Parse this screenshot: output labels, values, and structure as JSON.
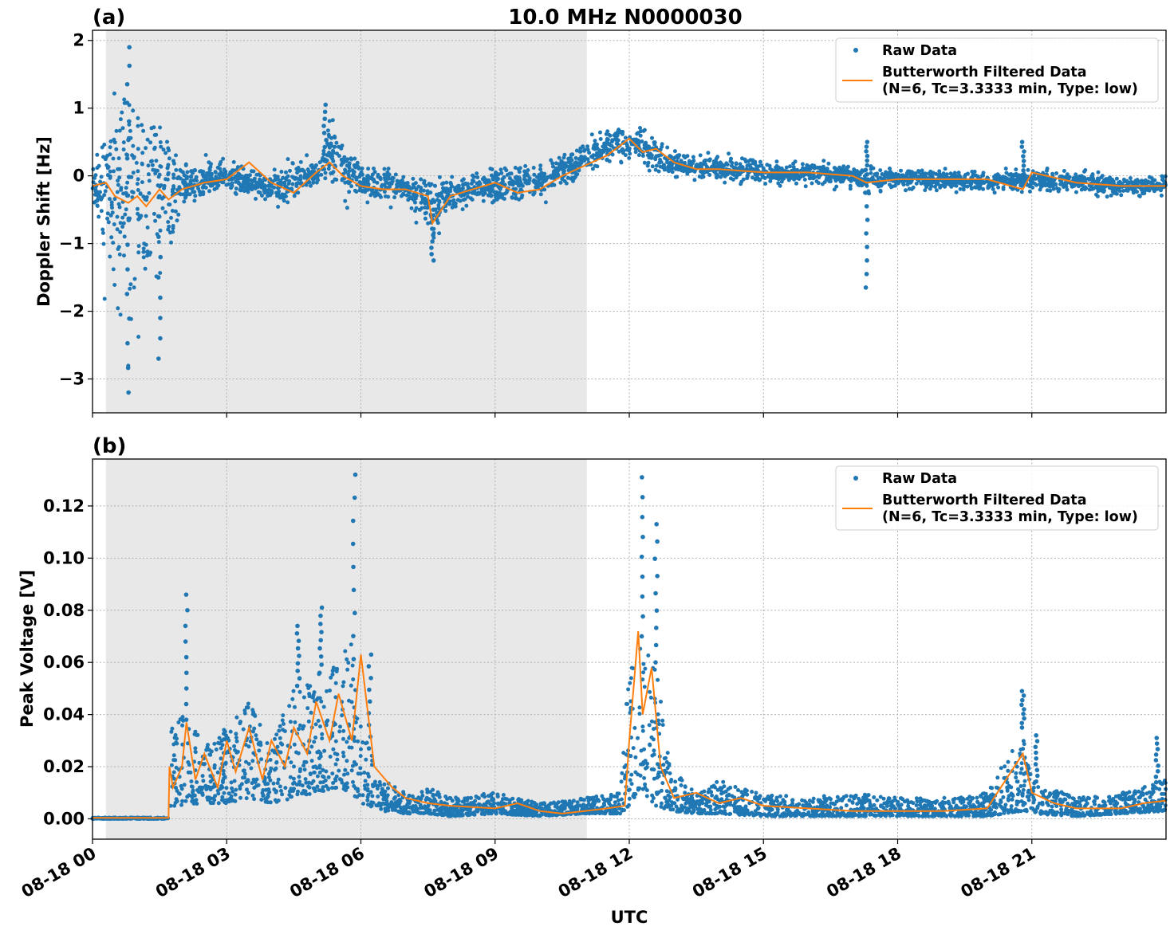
{
  "figure": {
    "title": "10.0 MHz N0000030",
    "xlabel": "UTC",
    "x_tick_labels": [
      "08-18 00",
      "08-18 03",
      "08-18 06",
      "08-18 09",
      "08-18 12",
      "08-18 15",
      "08-18 18",
      "08-18 21"
    ]
  },
  "colors": {
    "raw": "#1f77b4",
    "filtered": "#ff7f0e",
    "night_shade": "#e8e8e8"
  },
  "legend": {
    "raw_label": "Raw Data",
    "filtered_label_line1": "Butterworth Filtered Data",
    "filtered_label_line2": "(N=6, Tc=3.3333 min, Type: low)",
    "placement": "top-right"
  },
  "chart_data": [
    {
      "type": "scatter",
      "panel": "(a)",
      "ylabel": "Doppler Shift [Hz]",
      "xlim_hours_utc": [
        0,
        24
      ],
      "ylim": [
        -3.5,
        2.15
      ],
      "yticks": [
        -3,
        -2,
        -1,
        0,
        1,
        2
      ],
      "y_tick_labels": [
        "−3",
        "−2",
        "−1",
        "0",
        "1",
        "2"
      ],
      "shaded_interval_hours_utc": [
        0.3,
        11.05
      ],
      "grid": true,
      "series": [
        {
          "name": "Raw Data",
          "style": "points",
          "x_hours_utc": [
            0,
            0.5,
            1,
            1.5,
            2,
            3,
            4,
            5,
            5.3,
            6,
            7,
            7.6,
            8,
            9,
            10,
            11,
            11.5,
            12,
            12.5,
            13,
            14,
            15,
            16,
            17,
            17.3,
            18,
            19,
            20,
            21,
            22,
            23,
            24
          ],
          "center": [
            -0.15,
            -0.2,
            -0.35,
            -0.3,
            -0.15,
            0.0,
            -0.2,
            0.05,
            0.3,
            -0.1,
            -0.2,
            -0.5,
            -0.25,
            -0.15,
            -0.1,
            0.25,
            0.45,
            0.5,
            0.35,
            0.15,
            0.1,
            0.05,
            0.05,
            0.0,
            -0.05,
            -0.05,
            -0.05,
            -0.1,
            -0.05,
            -0.1,
            -0.15,
            -0.15
          ],
          "spread": [
            0.15,
            1.8,
            1.6,
            1.5,
            0.3,
            0.25,
            0.25,
            0.25,
            0.5,
            0.25,
            0.25,
            0.5,
            0.25,
            0.25,
            0.25,
            0.25,
            0.25,
            0.25,
            0.25,
            0.2,
            0.15,
            0.15,
            0.15,
            0.15,
            0.2,
            0.15,
            0.15,
            0.15,
            0.15,
            0.15,
            0.15,
            0.15
          ],
          "extremes": [
            [
              0.8,
              -3.2
            ],
            [
              0.8,
              1.9
            ],
            [
              1.5,
              -2.7
            ],
            [
              5.2,
              1.05
            ],
            [
              7.6,
              -1.25
            ],
            [
              17.3,
              -1.65
            ],
            [
              17.3,
              0.5
            ],
            [
              20.8,
              0.5
            ]
          ]
        },
        {
          "name": "Butterworth Filtered Data (N=6, Tc=3.3333 min, Type: low)",
          "style": "line",
          "x_hours_utc": [
            0,
            0.3,
            0.5,
            0.8,
            1.0,
            1.2,
            1.5,
            1.7,
            2.0,
            2.5,
            3.0,
            3.5,
            4.0,
            4.5,
            5.0,
            5.3,
            5.6,
            6.0,
            6.5,
            7.0,
            7.5,
            7.6,
            8.0,
            8.5,
            9.0,
            9.5,
            10.0,
            10.5,
            11.0,
            11.5,
            12.0,
            12.3,
            12.6,
            13.0,
            13.5,
            14.0,
            15.0,
            16.0,
            17.0,
            17.3,
            18.0,
            19.0,
            20.0,
            20.8,
            21.0,
            22.0,
            23.0,
            24.0
          ],
          "values": [
            -0.15,
            -0.1,
            -0.3,
            -0.4,
            -0.3,
            -0.45,
            -0.2,
            -0.35,
            -0.2,
            -0.1,
            -0.05,
            0.2,
            -0.1,
            -0.25,
            0.05,
            0.2,
            0.0,
            -0.15,
            -0.2,
            -0.2,
            -0.3,
            -0.7,
            -0.3,
            -0.2,
            -0.1,
            -0.25,
            -0.2,
            0.0,
            0.15,
            0.3,
            0.55,
            0.35,
            0.4,
            0.2,
            0.1,
            0.1,
            0.05,
            0.05,
            0.0,
            -0.1,
            -0.05,
            -0.05,
            -0.05,
            -0.2,
            0.05,
            -0.1,
            -0.15,
            -0.15
          ]
        }
      ]
    },
    {
      "type": "scatter",
      "panel": "(b)",
      "ylabel": "Peak Voltage [V]",
      "xlim_hours_utc": [
        0,
        24
      ],
      "ylim": [
        -0.0078,
        0.138
      ],
      "yticks": [
        0.0,
        0.02,
        0.04,
        0.06,
        0.08,
        0.1,
        0.12
      ],
      "y_tick_labels": [
        "0.00",
        "0.02",
        "0.04",
        "0.06",
        "0.08",
        "0.10",
        "0.12"
      ],
      "shaded_interval_hours_utc": [
        0.3,
        11.05
      ],
      "grid": true,
      "series": [
        {
          "name": "Raw Data",
          "style": "points",
          "x_hours_utc": [
            0,
            1.7,
            1.75,
            2.0,
            2.5,
            3.0,
            3.5,
            4.0,
            4.5,
            5.0,
            5.5,
            5.8,
            6.0,
            6.5,
            7.0,
            7.5,
            8.0,
            9.0,
            10.0,
            11.0,
            11.8,
            12.0,
            12.3,
            12.6,
            12.9,
            13.5,
            14.0,
            15.0,
            16.0,
            17.0,
            18.0,
            19.0,
            20.0,
            20.8,
            21.0,
            22.0,
            23.0,
            24.0
          ],
          "lower": [
            0.0,
            0.0,
            0.005,
            0.005,
            0.006,
            0.006,
            0.008,
            0.006,
            0.008,
            0.01,
            0.012,
            0.01,
            0.006,
            0.003,
            0.002,
            0.002,
            0.001,
            0.002,
            0.001,
            0.002,
            0.002,
            0.005,
            0.01,
            0.005,
            0.003,
            0.002,
            0.002,
            0.001,
            0.001,
            0.001,
            0.001,
            0.001,
            0.001,
            0.003,
            0.002,
            0.001,
            0.002,
            0.003
          ],
          "upper": [
            0.0005,
            0.0005,
            0.035,
            0.04,
            0.03,
            0.035,
            0.045,
            0.03,
            0.05,
            0.055,
            0.06,
            0.07,
            0.035,
            0.015,
            0.01,
            0.012,
            0.008,
            0.01,
            0.006,
            0.008,
            0.01,
            0.06,
            0.07,
            0.06,
            0.02,
            0.01,
            0.015,
            0.01,
            0.008,
            0.01,
            0.008,
            0.008,
            0.01,
            0.035,
            0.015,
            0.008,
            0.01,
            0.015
          ],
          "extremes": [
            [
              2.1,
              0.086
            ],
            [
              4.6,
              0.074
            ],
            [
              5.1,
              0.081
            ],
            [
              5.85,
              0.132
            ],
            [
              6.2,
              0.063
            ],
            [
              12.3,
              0.131
            ],
            [
              12.6,
              0.113
            ],
            [
              20.8,
              0.049
            ],
            [
              21.1,
              0.032
            ],
            [
              23.8,
              0.031
            ]
          ]
        },
        {
          "name": "Butterworth Filtered Data (N=6, Tc=3.3333 min, Type: low)",
          "style": "line",
          "x_hours_utc": [
            0,
            1.7,
            1.72,
            1.8,
            2.0,
            2.1,
            2.3,
            2.5,
            2.8,
            3.0,
            3.2,
            3.5,
            3.8,
            4.0,
            4.3,
            4.5,
            4.8,
            5.0,
            5.3,
            5.5,
            5.8,
            6.0,
            6.3,
            6.7,
            7.0,
            7.5,
            8.0,
            9.0,
            9.5,
            10.0,
            10.5,
            11.0,
            11.5,
            11.9,
            12.0,
            12.2,
            12.3,
            12.5,
            12.7,
            13.0,
            13.5,
            14.0,
            14.5,
            15.0,
            16.0,
            17.0,
            18.0,
            19.0,
            20.0,
            20.8,
            21.0,
            21.5,
            22.0,
            23.0,
            23.5,
            24.0
          ],
          "values": [
            0.0004,
            0.0004,
            0.02,
            0.012,
            0.02,
            0.037,
            0.015,
            0.025,
            0.012,
            0.03,
            0.018,
            0.035,
            0.015,
            0.03,
            0.02,
            0.035,
            0.025,
            0.045,
            0.03,
            0.048,
            0.03,
            0.063,
            0.02,
            0.012,
            0.008,
            0.006,
            0.005,
            0.004,
            0.006,
            0.003,
            0.002,
            0.003,
            0.004,
            0.005,
            0.03,
            0.072,
            0.04,
            0.058,
            0.02,
            0.008,
            0.01,
            0.006,
            0.008,
            0.005,
            0.004,
            0.003,
            0.003,
            0.003,
            0.004,
            0.025,
            0.01,
            0.006,
            0.004,
            0.004,
            0.006,
            0.007
          ]
        }
      ]
    }
  ]
}
